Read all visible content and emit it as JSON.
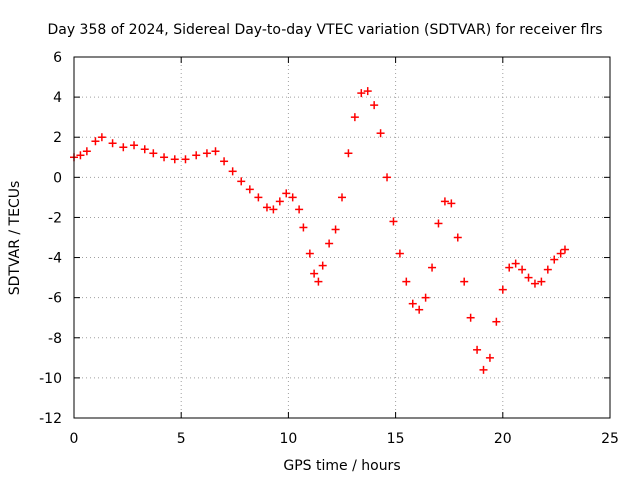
{
  "chart_data": {
    "type": "scatter",
    "title": "Day 358 of 2024, Sidereal Day-to-day VTEC variation (SDTVAR) for receiver flrs",
    "xlabel": "GPS time / hours",
    "ylabel": "SDTVAR / TECUs",
    "xlim": [
      0,
      25
    ],
    "ylim": [
      -12,
      6
    ],
    "xticks": [
      0,
      5,
      10,
      15,
      20,
      25
    ],
    "yticks": [
      -12,
      -10,
      -8,
      -6,
      -4,
      -2,
      0,
      2,
      4,
      6
    ],
    "grid": true,
    "marker": "+",
    "series": [
      {
        "name": "SDTVAR",
        "color": "#ff0000",
        "x": [
          0.0,
          0.3,
          0.6,
          1.0,
          1.3,
          1.8,
          2.3,
          2.8,
          3.3,
          3.7,
          4.2,
          4.7,
          5.2,
          5.7,
          6.2,
          6.6,
          7.0,
          7.4,
          7.8,
          8.2,
          8.6,
          9.0,
          9.3,
          9.6,
          9.9,
          10.2,
          10.5,
          10.7,
          11.0,
          11.2,
          11.4,
          11.6,
          11.9,
          12.2,
          12.5,
          12.8,
          13.1,
          13.4,
          13.7,
          14.0,
          14.3,
          14.6,
          14.9,
          15.2,
          15.5,
          15.8,
          16.1,
          16.4,
          16.7,
          17.0,
          17.3,
          17.6,
          17.9,
          18.2,
          18.5,
          18.8,
          19.1,
          19.4,
          19.7,
          20.0,
          20.3,
          20.6,
          20.9,
          21.2,
          21.5,
          21.8,
          22.1,
          22.4,
          22.7,
          22.9
        ],
        "y": [
          1.0,
          1.1,
          1.3,
          1.8,
          2.0,
          1.7,
          1.5,
          1.6,
          1.4,
          1.2,
          1.0,
          0.9,
          0.9,
          1.1,
          1.2,
          1.3,
          0.8,
          0.3,
          -0.2,
          -0.6,
          -1.0,
          -1.5,
          -1.6,
          -1.2,
          -0.8,
          -1.0,
          -1.6,
          -2.5,
          -3.8,
          -4.8,
          -5.2,
          -4.4,
          -3.3,
          -2.6,
          -1.0,
          1.2,
          3.0,
          4.2,
          4.3,
          3.6,
          2.2,
          0.0,
          -2.2,
          -3.8,
          -5.2,
          -6.3,
          -6.6,
          -6.0,
          -4.5,
          -2.3,
          -1.2,
          -1.3,
          -3.0,
          -5.2,
          -7.0,
          -8.6,
          -9.6,
          -9.0,
          -7.2,
          -5.6,
          -4.5,
          -4.3,
          -4.6,
          -5.0,
          -5.3,
          -5.2,
          -4.6,
          -4.1,
          -3.8,
          -3.6
        ]
      }
    ]
  }
}
